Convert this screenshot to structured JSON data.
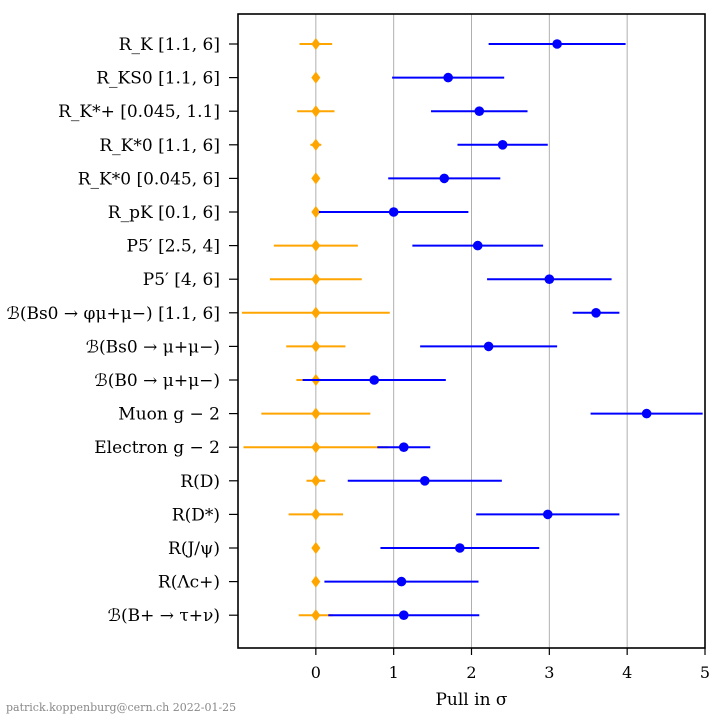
{
  "chart_data": {
    "type": "scatter",
    "xlabel": "Pull in σ",
    "xlim": [
      -1,
      5
    ],
    "xticks": [
      "0",
      "1",
      "2",
      "3",
      "4",
      "5"
    ],
    "grid": "vertical",
    "rows": [
      {
        "label": "R_K [1.1, 6]"
      },
      {
        "label": "R_KS0 [1.1, 6]"
      },
      {
        "label": "R_K*+ [0.045, 1.1]"
      },
      {
        "label": "R_K*0 [1.1, 6]"
      },
      {
        "label": "R_K*0 [0.045, 6]"
      },
      {
        "label": "R_pK [0.1, 6]"
      },
      {
        "label": "P5′ [2.5, 4]"
      },
      {
        "label": "P5′ [4, 6]"
      },
      {
        "label": "ℬ(Bs0 → φμ+μ−) [1.1, 6]"
      },
      {
        "label": "ℬ(Bs0 → μ+μ−)"
      },
      {
        "label": "ℬ(B0 → μ+μ−)"
      },
      {
        "label": "Muon g − 2"
      },
      {
        "label": "Electron g − 2"
      },
      {
        "label": "R(D)"
      },
      {
        "label": "R(D*)"
      },
      {
        "label": "R(J/ψ)"
      },
      {
        "label": "R(Λc+)"
      },
      {
        "label": "ℬ(B+ → τ+ν)"
      }
    ],
    "series": [
      {
        "color": "#ffa500",
        "marker": "diamond",
        "values": [
          0,
          0,
          0,
          0,
          0,
          0,
          0,
          0,
          0,
          0,
          0,
          0,
          0,
          0,
          0,
          0,
          0,
          0
        ],
        "errors": [
          0.21,
          0.02,
          0.24,
          0.07,
          0.04,
          0.05,
          0.54,
          0.59,
          0.95,
          0.38,
          0.25,
          0.7,
          0.93,
          0.12,
          0.35,
          0.03,
          0.03,
          0.22
        ]
      },
      {
        "color": "#0000ff",
        "marker": "circle",
        "values": [
          3.1,
          1.7,
          2.1,
          2.4,
          1.65,
          1.0,
          2.08,
          3.0,
          3.6,
          2.22,
          0.75,
          4.25,
          1.13,
          1.4,
          2.98,
          1.85,
          1.1,
          1.13
        ],
        "errors": [
          0.88,
          0.72,
          0.62,
          0.58,
          0.72,
          0.96,
          0.84,
          0.8,
          0.3,
          0.88,
          0.92,
          0.72,
          0.34,
          0.99,
          0.92,
          1.02,
          0.99,
          0.97
        ]
      }
    ]
  },
  "footer": "patrick.koppenburg@cern.ch 2022-01-25"
}
